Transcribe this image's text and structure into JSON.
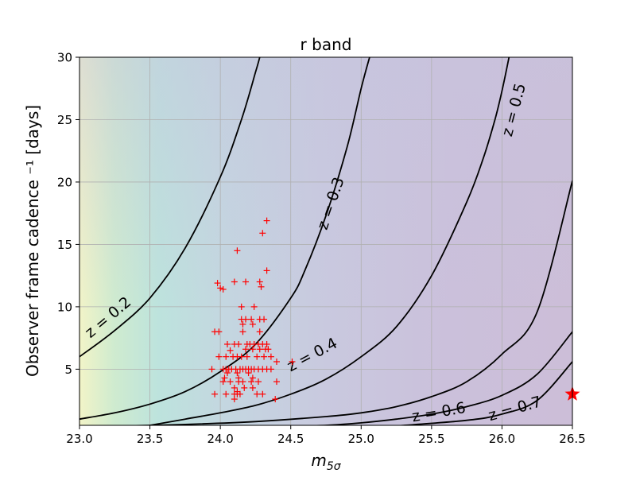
{
  "chart_data": {
    "type": "scatter",
    "title": "r band",
    "xlabel": "m",
    "xlabel_sub": "5σ",
    "ylabel": "Observer frame cadence ⁻¹ [days]",
    "xlim": [
      23.0,
      26.5
    ],
    "ylim": [
      0.5,
      30
    ],
    "xticks": [
      "23.0",
      "23.5",
      "24.0",
      "24.5",
      "25.0",
      "25.5",
      "26.0",
      "26.5"
    ],
    "yticks": [
      "5",
      "10",
      "15",
      "20",
      "25",
      "30"
    ],
    "grid": true,
    "background_colormap": "viridis-like (yellow-green at low m5σ fading to purple at high m5σ)",
    "contours": [
      {
        "label": "z = 0.2",
        "color": "#000000",
        "points": [
          [
            23.0,
            6.0
          ],
          [
            23.25,
            8.1
          ],
          [
            23.5,
            10.7
          ],
          [
            23.75,
            14.7
          ],
          [
            24.0,
            20.4
          ],
          [
            24.15,
            25.0
          ],
          [
            24.25,
            28.8
          ],
          [
            24.28,
            30.0
          ]
        ]
      },
      {
        "label": "z = 0.3",
        "color": "#000000",
        "points": [
          [
            23.0,
            1.0
          ],
          [
            23.25,
            1.5
          ],
          [
            23.5,
            2.2
          ],
          [
            23.75,
            3.2
          ],
          [
            24.0,
            4.8
          ],
          [
            24.25,
            7.0
          ],
          [
            24.5,
            10.7
          ],
          [
            24.6,
            12.9
          ],
          [
            24.75,
            17.3
          ],
          [
            24.9,
            22.8
          ],
          [
            25.0,
            27.5
          ],
          [
            25.06,
            30.0
          ]
        ]
      },
      {
        "label": "z = 0.4",
        "color": "#000000",
        "points": [
          [
            23.5,
            0.5
          ],
          [
            23.75,
            1.0
          ],
          [
            24.0,
            1.5
          ],
          [
            24.25,
            2.1
          ],
          [
            24.5,
            3.0
          ],
          [
            24.75,
            4.2
          ],
          [
            25.0,
            6.0
          ],
          [
            25.25,
            8.4
          ],
          [
            25.5,
            12.5
          ],
          [
            25.75,
            18.4
          ],
          [
            25.87,
            22.0
          ],
          [
            25.95,
            25.0
          ],
          [
            26.0,
            27.3
          ],
          [
            26.05,
            30.0
          ]
        ]
      },
      {
        "label": "z = 0.5",
        "color": "#000000",
        "points": [
          [
            23.3,
            0.45
          ],
          [
            23.75,
            0.57
          ],
          [
            24.25,
            0.8
          ],
          [
            24.75,
            1.2
          ],
          [
            25.0,
            1.5
          ],
          [
            25.25,
            2.0
          ],
          [
            25.5,
            2.8
          ],
          [
            25.75,
            4.0
          ],
          [
            26.0,
            6.2
          ],
          [
            26.25,
            9.6
          ],
          [
            26.5,
            20.1
          ]
        ]
      },
      {
        "label": "z = 0.6",
        "color": "#000000",
        "points": [
          [
            24.4,
            0.45
          ],
          [
            24.75,
            0.5
          ],
          [
            25.0,
            0.7
          ],
          [
            25.25,
            1.0
          ],
          [
            25.5,
            1.4
          ],
          [
            25.75,
            2.0
          ],
          [
            26.0,
            2.9
          ],
          [
            26.25,
            4.6
          ],
          [
            26.5,
            8.0
          ]
        ]
      },
      {
        "label": "z = 0.7",
        "color": "#000000",
        "points": [
          [
            25.25,
            0.45
          ],
          [
            25.75,
            0.9
          ],
          [
            26.0,
            1.4
          ],
          [
            26.25,
            2.5
          ],
          [
            26.5,
            5.6
          ]
        ]
      }
    ],
    "series": [
      {
        "name": "",
        "marker": "+",
        "color": "#ff0000",
        "points": [
          [
            23.98,
            11.9
          ],
          [
            24.0,
            11.5
          ],
          [
            24.02,
            11.4
          ],
          [
            24.12,
            14.5
          ],
          [
            24.1,
            12.0
          ],
          [
            24.18,
            12.0
          ],
          [
            24.28,
            12.0
          ],
          [
            24.29,
            11.6
          ],
          [
            24.33,
            16.9
          ],
          [
            24.3,
            15.9
          ],
          [
            24.33,
            12.9
          ],
          [
            24.24,
            10.0
          ],
          [
            24.15,
            10.0
          ],
          [
            24.15,
            9.0
          ],
          [
            24.18,
            9.0
          ],
          [
            24.22,
            9.0
          ],
          [
            24.28,
            9.0
          ],
          [
            24.31,
            9.0
          ],
          [
            24.16,
            8.6
          ],
          [
            24.23,
            8.6
          ],
          [
            24.28,
            8.0
          ],
          [
            23.96,
            8.0
          ],
          [
            23.99,
            8.0
          ],
          [
            24.16,
            8.0
          ],
          [
            24.05,
            7.0
          ],
          [
            24.1,
            7.0
          ],
          [
            24.13,
            7.0
          ],
          [
            24.19,
            7.0
          ],
          [
            24.21,
            7.0
          ],
          [
            24.24,
            7.0
          ],
          [
            24.27,
            7.0
          ],
          [
            24.3,
            7.0
          ],
          [
            24.33,
            7.0
          ],
          [
            24.07,
            6.5
          ],
          [
            24.18,
            6.6
          ],
          [
            24.23,
            6.6
          ],
          [
            24.28,
            6.6
          ],
          [
            24.32,
            6.6
          ],
          [
            24.34,
            6.6
          ],
          [
            23.99,
            6.0
          ],
          [
            24.04,
            6.0
          ],
          [
            24.09,
            6.0
          ],
          [
            24.12,
            6.0
          ],
          [
            24.15,
            6.0
          ],
          [
            24.19,
            6.0
          ],
          [
            24.26,
            6.0
          ],
          [
            24.31,
            6.0
          ],
          [
            24.36,
            6.0
          ],
          [
            24.4,
            5.6
          ],
          [
            24.51,
            5.6
          ],
          [
            23.94,
            5.0
          ],
          [
            24.02,
            5.0
          ],
          [
            24.04,
            5.0
          ],
          [
            24.06,
            5.0
          ],
          [
            24.08,
            5.0
          ],
          [
            24.11,
            5.0
          ],
          [
            24.14,
            5.0
          ],
          [
            24.16,
            5.0
          ],
          [
            24.18,
            5.0
          ],
          [
            24.2,
            5.0
          ],
          [
            24.22,
            5.0
          ],
          [
            24.24,
            5.0
          ],
          [
            24.27,
            5.0
          ],
          [
            24.3,
            5.0
          ],
          [
            24.33,
            5.0
          ],
          [
            24.36,
            5.0
          ],
          [
            24.05,
            4.7
          ],
          [
            24.12,
            4.7
          ],
          [
            24.2,
            4.7
          ],
          [
            24.03,
            4.3
          ],
          [
            24.13,
            4.3
          ],
          [
            24.23,
            4.3
          ],
          [
            24.02,
            4.0
          ],
          [
            24.07,
            4.0
          ],
          [
            24.13,
            4.0
          ],
          [
            24.16,
            4.0
          ],
          [
            24.22,
            4.0
          ],
          [
            24.27,
            4.0
          ],
          [
            24.4,
            4.0
          ],
          [
            24.1,
            3.5
          ],
          [
            24.17,
            3.5
          ],
          [
            24.23,
            3.5
          ],
          [
            23.96,
            3.0
          ],
          [
            24.04,
            3.0
          ],
          [
            24.1,
            3.0
          ],
          [
            24.12,
            3.0
          ],
          [
            24.14,
            3.0
          ],
          [
            24.26,
            3.0
          ],
          [
            24.3,
            3.0
          ],
          [
            24.1,
            2.6
          ],
          [
            24.39,
            2.6
          ],
          [
            24.12,
            3.2
          ]
        ]
      },
      {
        "name": "",
        "marker": "star",
        "color": "#ff0000",
        "points": [
          [
            26.5,
            3.0
          ]
        ]
      }
    ]
  }
}
